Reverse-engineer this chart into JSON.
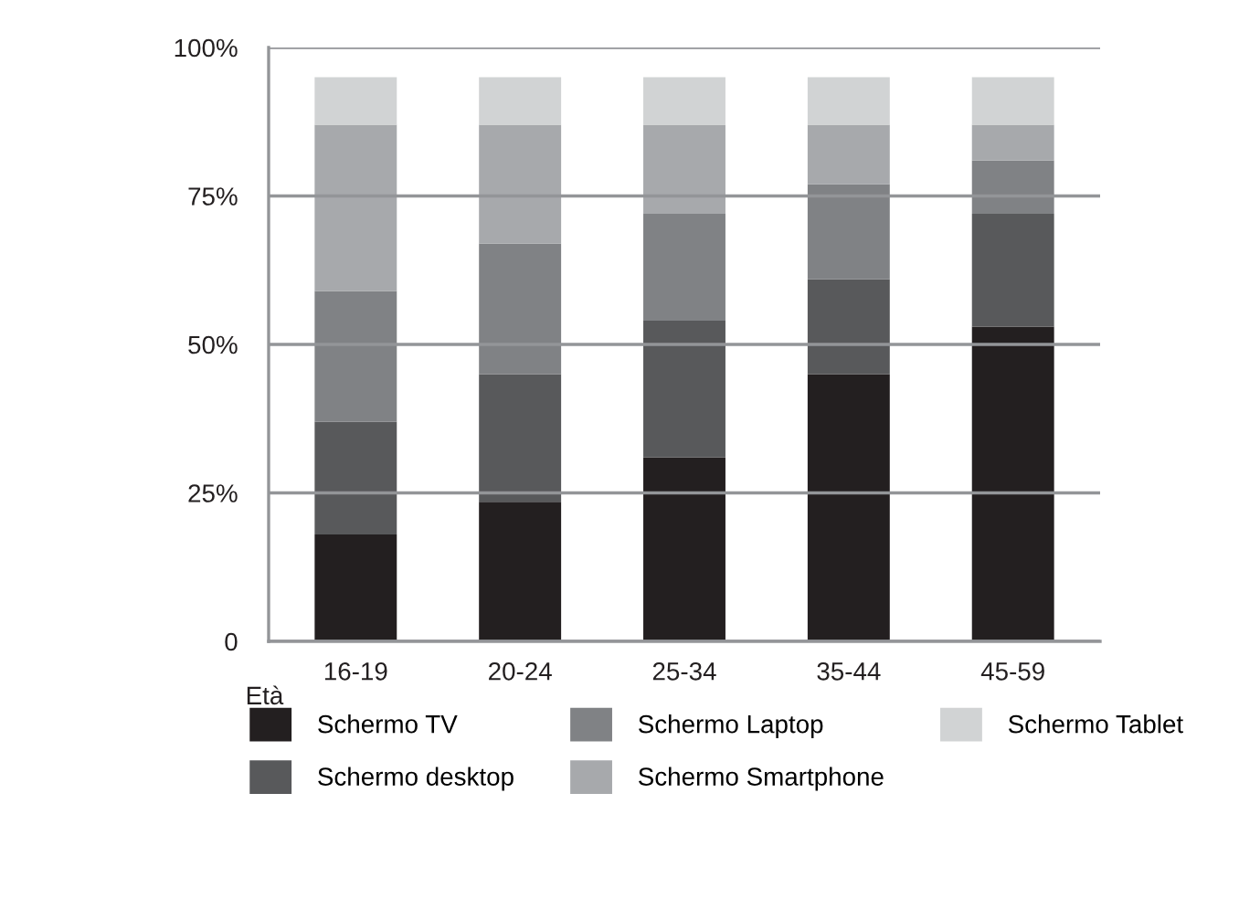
{
  "chart_data": {
    "type": "bar",
    "stacked": true,
    "xlabel": "Età",
    "categories": [
      "16-19",
      "20-24",
      "25-34",
      "35-44",
      "45-59"
    ],
    "series": [
      {
        "name": "Schermo TV",
        "color": "#231f20",
        "values": [
          18,
          23.5,
          31,
          45,
          53
        ]
      },
      {
        "name": "Schermo desktop",
        "color": "#58595b",
        "values": [
          19,
          21.5,
          23,
          16,
          19
        ]
      },
      {
        "name": "Schermo Laptop",
        "color": "#808285",
        "values": [
          22,
          22,
          18,
          16,
          9
        ]
      },
      {
        "name": "Schermo Smartphone",
        "color": "#a7a9ac",
        "values": [
          28,
          20,
          15,
          10,
          6
        ]
      },
      {
        "name": "Schermo Tablet",
        "color": "#d1d3d4",
        "values": [
          8,
          8,
          8,
          8,
          8
        ]
      }
    ],
    "ylim": [
      0,
      100
    ],
    "yticks": [
      0,
      {
        "value": 25,
        "label": "25%"
      },
      {
        "value": 50,
        "label": "50%"
      },
      {
        "value": 75,
        "label": "75%"
      },
      {
        "value": 100,
        "label": "100%"
      }
    ],
    "grid": "y",
    "legend": "bottom"
  }
}
